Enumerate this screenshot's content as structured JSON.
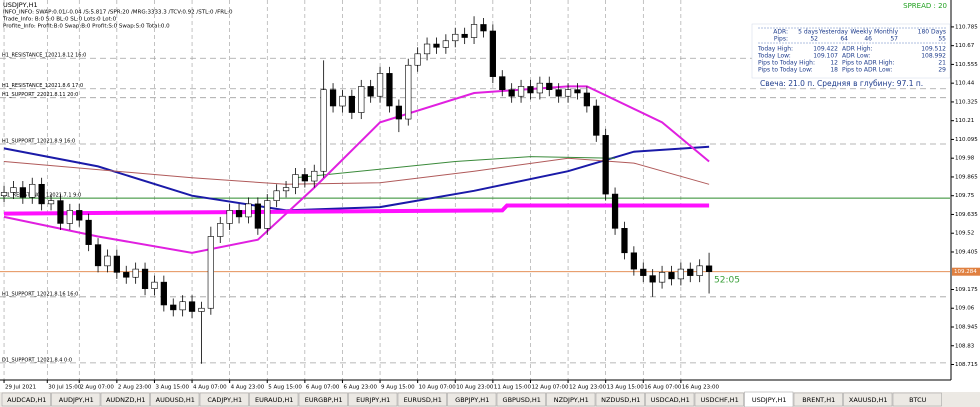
{
  "window": {
    "title": "USDJPY,H1",
    "info_lines": [
      "INFO_INFO: SWAP:0.01/-0.04 /S:5.817 /SPR:20 /MRG:3333.3 /TCV:0.92 /STL:0 /FRL:0",
      "Trade_Info: B:0 S:0 BL:0 SL:0 Lots:0 Lot:0",
      "Profite_Info: Profit:B:0 Swap:B:0 Profit:S:0 Swap:S:0 Total:0.0"
    ],
    "spread": "SPREAD : 20",
    "timer": "52:05",
    "candle_note": "Свеча: 21.0 п. Средняя в глубину: 97.1 п."
  },
  "adr_table": {
    "header": [
      "ADR:",
      "5 days",
      "Yesterday",
      "Weekly",
      "Monthly",
      "180 Days"
    ],
    "pips": [
      "Pips:",
      "52",
      "64",
      "46",
      "57",
      "55"
    ],
    "rows": [
      [
        "Today High:",
        "109.422",
        "ADR High:",
        "109.512"
      ],
      [
        "Today Low:",
        "109.107",
        "ADR Low:",
        "108.992"
      ],
      [
        "Pips to Today High:",
        "12",
        "Pips to ADR High:",
        "21"
      ],
      [
        "Pips to Today Low:",
        "18",
        "Pips to ADR Low:",
        "29"
      ]
    ]
  },
  "chart_data": {
    "type": "candlestick",
    "open": [
      109.75,
      109.77,
      109.8,
      109.74,
      109.82,
      109.7,
      109.72,
      109.58,
      109.66,
      109.6,
      109.45,
      109.32,
      109.38,
      109.28,
      109.25,
      109.3,
      109.18,
      109.22,
      109.08,
      109.05,
      109.1,
      109.04,
      109.06,
      109.5,
      109.58,
      109.66,
      109.62,
      109.7,
      109.55,
      109.72,
      109.78,
      109.8,
      109.88,
      109.84,
      109.9,
      110.4,
      110.3,
      110.36,
      110.26,
      110.42,
      110.36,
      110.5,
      110.3,
      110.22,
      110.55,
      110.62,
      110.68,
      110.66,
      110.7,
      110.74,
      110.72,
      110.8,
      110.76,
      110.48,
      110.4,
      110.36,
      110.42,
      110.38,
      110.44,
      110.4,
      110.36,
      110.4,
      110.38,
      110.3,
      110.12,
      109.76,
      109.55,
      109.4,
      109.3,
      109.26,
      109.22,
      109.28,
      109.24,
      109.3,
      109.26,
      109.32
    ],
    "high": [
      109.81,
      109.84,
      109.84,
      109.86,
      109.86,
      109.76,
      109.76,
      109.7,
      109.7,
      109.64,
      109.49,
      109.42,
      109.42,
      109.32,
      109.34,
      109.34,
      109.26,
      109.26,
      109.12,
      109.14,
      109.14,
      109.1,
      109.56,
      109.62,
      109.7,
      109.7,
      109.74,
      109.74,
      109.76,
      109.82,
      109.84,
      109.92,
      109.92,
      109.94,
      110.58,
      110.44,
      110.4,
      110.4,
      110.46,
      110.46,
      110.54,
      110.54,
      110.34,
      110.59,
      110.66,
      110.72,
      110.72,
      110.74,
      110.78,
      110.78,
      110.85,
      110.84,
      110.8,
      110.52,
      110.44,
      110.46,
      110.46,
      110.48,
      110.48,
      110.44,
      110.44,
      110.44,
      110.42,
      110.34,
      110.16,
      109.8,
      109.59,
      109.44,
      109.34,
      109.3,
      109.32,
      109.32,
      109.34,
      109.34,
      109.36,
      109.4
    ],
    "low": [
      109.71,
      109.73,
      109.7,
      109.7,
      109.66,
      109.66,
      109.54,
      109.54,
      109.56,
      109.41,
      109.28,
      109.28,
      109.24,
      109.21,
      109.21,
      109.14,
      109.14,
      109.04,
      109.01,
      109.01,
      109.0,
      108.72,
      109.02,
      109.46,
      109.54,
      109.58,
      109.58,
      109.51,
      109.51,
      109.68,
      109.74,
      109.76,
      109.8,
      109.8,
      109.86,
      110.26,
      110.26,
      110.22,
      110.22,
      110.32,
      110.32,
      110.26,
      110.14,
      110.18,
      110.51,
      110.58,
      110.62,
      110.62,
      110.66,
      110.68,
      110.68,
      110.72,
      110.44,
      110.36,
      110.32,
      110.32,
      110.34,
      110.34,
      110.36,
      110.32,
      110.32,
      110.34,
      110.26,
      110.08,
      109.72,
      109.51,
      109.36,
      109.26,
      109.22,
      109.13,
      109.18,
      109.2,
      109.2,
      109.22,
      109.22,
      109.15
    ],
    "close": [
      109.77,
      109.8,
      109.74,
      109.82,
      109.7,
      109.72,
      109.58,
      109.66,
      109.6,
      109.45,
      109.32,
      109.38,
      109.28,
      109.25,
      109.3,
      109.18,
      109.22,
      109.08,
      109.05,
      109.1,
      109.04,
      109.06,
      109.5,
      109.58,
      109.66,
      109.62,
      109.7,
      109.55,
      109.72,
      109.78,
      109.8,
      109.88,
      109.84,
      109.9,
      110.4,
      110.3,
      110.36,
      110.26,
      110.42,
      110.36,
      110.5,
      110.3,
      110.22,
      110.55,
      110.62,
      110.68,
      110.66,
      110.7,
      110.74,
      110.72,
      110.8,
      110.76,
      110.48,
      110.4,
      110.36,
      110.42,
      110.38,
      110.44,
      110.4,
      110.36,
      110.4,
      110.38,
      110.3,
      110.12,
      109.76,
      109.55,
      109.4,
      109.3,
      109.26,
      109.22,
      109.28,
      109.24,
      109.3,
      109.26,
      109.32,
      109.284
    ],
    "xlim": [
      -0.43,
      100.63
    ],
    "xticks": [
      {
        "value": 0,
        "label": "29 Jul 2021"
      },
      {
        "value": 4.6,
        "label": "30 Jul 15:00"
      },
      {
        "value": 8,
        "label": "2 Aug 07:00"
      },
      {
        "value": 12,
        "label": "2 Aug 23:00"
      },
      {
        "value": 16,
        "label": "3 Aug 15:00"
      },
      {
        "value": 20,
        "label": "4 Aug 07:00"
      },
      {
        "value": 24,
        "label": "4 Aug 23:00"
      },
      {
        "value": 28,
        "label": "5 Aug 15:00"
      },
      {
        "value": 32,
        "label": "6 Aug 07:00"
      },
      {
        "value": 36,
        "label": "6 Aug 23:00"
      },
      {
        "value": 40,
        "label": "9 Aug 15:00"
      },
      {
        "value": 44,
        "label": "10 Aug 07:00"
      },
      {
        "value": 48,
        "label": "10 Aug 23:00"
      },
      {
        "value": 52,
        "label": "11 Aug 15:00"
      },
      {
        "value": 56,
        "label": "12 Aug 07:00"
      },
      {
        "value": 60,
        "label": "12 Aug 23:00"
      },
      {
        "value": 64,
        "label": "13 Aug 15:00"
      },
      {
        "value": 68,
        "label": "16 Aug 07:00"
      },
      {
        "value": 72,
        "label": "16 Aug 23:00"
      }
    ],
    "ylim": [
      108.62,
      110.95
    ],
    "yticks": [
      110.785,
      110.67,
      110.555,
      110.44,
      110.325,
      110.21,
      110.095,
      109.98,
      109.865,
      109.75,
      109.635,
      109.52,
      109.405,
      109.175,
      109.06,
      108.945,
      108.83,
      108.715
    ],
    "grid": true,
    "bull_color": "#ffffff",
    "bear_color": "#000000",
    "lines": [
      {
        "color": "#1a1aa8",
        "width": 2,
        "x": [
          0,
          10,
          20,
          30,
          40,
          50,
          60,
          67,
          75
        ],
        "values": [
          110.04,
          109.93,
          109.75,
          109.66,
          109.68,
          109.78,
          109.9,
          110.02,
          110.05
        ]
      },
      {
        "color": "#b05a5a",
        "width": 1,
        "x": [
          0,
          20,
          30,
          40,
          50,
          60,
          67,
          75
        ],
        "values": [
          109.96,
          109.86,
          109.82,
          109.83,
          109.9,
          109.98,
          109.95,
          109.82
        ]
      },
      {
        "color": "#3a8a3a",
        "width": 1,
        "x": [
          31,
          48,
          56,
          65
        ],
        "values": [
          109.86,
          109.96,
          109.99,
          109.98
        ]
      },
      {
        "color": "#e020e0",
        "width": 2,
        "x": [
          0,
          10,
          20,
          27,
          33,
          40,
          50,
          60,
          62,
          70,
          75
        ],
        "values": [
          109.62,
          109.5,
          109.4,
          109.48,
          109.8,
          110.2,
          110.38,
          110.42,
          110.42,
          110.2,
          109.96
        ]
      },
      {
        "color": "#ff10ff",
        "width": 4,
        "x": [
          0,
          53,
          53.5,
          75
        ],
        "values": [
          109.64,
          109.66,
          109.69,
          109.69
        ]
      }
    ],
    "levels": [
      {
        "label": "H1_RESISTANCE_12021.8.12 16:0",
        "value": 110.593
      },
      {
        "label": "H1_RESISTANCE_12021.8.6 17:0",
        "value": 110.406
      },
      {
        "label": "H1_SUPPORT_22021.8.11 20:0",
        "value": 110.351
      },
      {
        "label": "H1_SUPPORT_12021.8.9 16:0",
        "value": 110.067
      },
      {
        "label": "H1_SUPPORT_12021.8.16 16:0",
        "value": 109.13
      },
      {
        "label": "D1_SUPPORT_12021.8.4 0:0",
        "value": 108.725
      }
    ],
    "resistance": {
      "label": "W1_RESISTANCE_12021.7.1 9:0",
      "value": 109.735,
      "color": "#2a8a2a"
    },
    "current_price": 109.284,
    "price_color": "#e08040"
  },
  "tabs": [
    "AUDCAD,H1",
    "AUDJPY,H1",
    "AUDNZD,H1",
    "AUDUSD,H1",
    "CADJPY,H1",
    "EURAUD,H1",
    "EURGBP,H1",
    "EURJPY,H1",
    "EURUSD,H1",
    "GBPJPY,H1",
    "GBPUSD,H1",
    "NZDJPY,H1",
    "NZDUSD,H1",
    "USDCAD,H1",
    "USDCHF,H1",
    "USDJPY,H1",
    "BRENT,H1",
    "XAUUSD,H1",
    "BTCU"
  ],
  "active_tab": 15
}
